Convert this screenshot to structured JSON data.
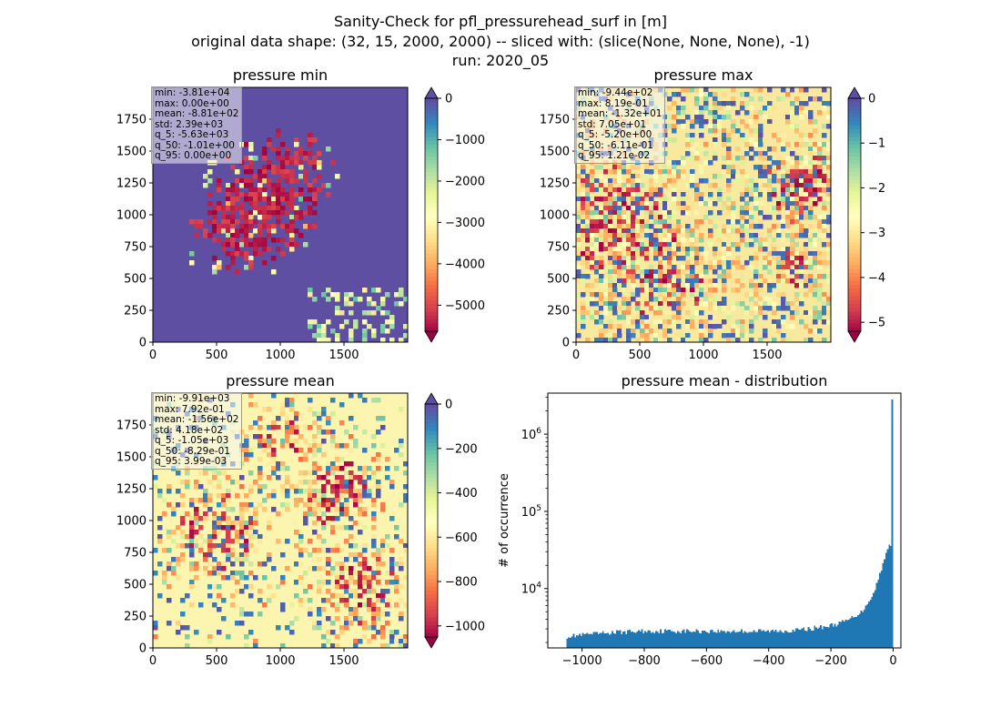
{
  "figure": {
    "title_lines": [
      "Sanity-Check for pfl_pressurehead_surf in [m]",
      "original data shape: (32, 15, 2000, 2000) -- sliced with: (slice(None, None, None), -1)",
      "run: 2020_05"
    ]
  },
  "chart_data": [
    {
      "type": "heatmap",
      "title": "pressure min",
      "xlim": [
        0,
        2000
      ],
      "ylim": [
        0,
        2000
      ],
      "xticks": [
        0,
        500,
        1000,
        1500
      ],
      "yticks": [
        0,
        250,
        500,
        750,
        1000,
        1250,
        1500,
        1750
      ],
      "colormap": "Spectral",
      "colorbar": {
        "range": [
          -5630,
          0
        ],
        "ticks": [
          0,
          -1000,
          -2000,
          -3000,
          -4000,
          -5000
        ],
        "extend": "both"
      },
      "background_color": "#5e4fa2",
      "stats": [
        "min: -3.81e+04",
        "max: 0.00e+00",
        "mean: -8.81e+02",
        "std: 2.39e+03",
        "q_5: -5.63e+03",
        "q_50: -1.01e+00",
        "q_95: 0.00e+00"
      ]
    },
    {
      "type": "heatmap",
      "title": "pressure max",
      "xlim": [
        0,
        2000
      ],
      "ylim": [
        0,
        2000
      ],
      "xticks": [
        0,
        500,
        1000,
        1500
      ],
      "yticks": [
        0,
        250,
        500,
        750,
        1000,
        1250,
        1500,
        1750
      ],
      "colormap": "Spectral",
      "colorbar": {
        "range": [
          -5.2,
          0
        ],
        "ticks": [
          0,
          -1,
          -2,
          -3,
          -4,
          -5
        ],
        "extend": "both"
      },
      "background_color": "#f8e99e",
      "stats": [
        "min: -9.44e+02",
        "max: 8.19e-01",
        "mean: -1.32e+01",
        "std: 7.05e+01",
        "q_5: -5.20e+00",
        "q_50: -6.11e-01",
        "q_95: 1.21e-02"
      ]
    },
    {
      "type": "heatmap",
      "title": "pressure mean",
      "xlim": [
        0,
        2000
      ],
      "ylim": [
        0,
        2000
      ],
      "xticks": [
        0,
        500,
        1000,
        1500
      ],
      "yticks": [
        0,
        250,
        500,
        750,
        1000,
        1250,
        1500,
        1750
      ],
      "colormap": "Spectral",
      "colorbar": {
        "range": [
          -1050,
          0
        ],
        "ticks": [
          0,
          -200,
          -400,
          -600,
          -800,
          -1000
        ],
        "extend": "both"
      },
      "background_color": "#fcf5b0",
      "stats": [
        "min: -9.91e+03",
        "max: 7.92e-01",
        "mean: -1.56e+02",
        "std: 4.18e+02",
        "q_5: -1.05e+03",
        "q_50: -8.29e-01",
        "q_95: 3.99e-03"
      ]
    },
    {
      "type": "bar",
      "title": "pressure mean - distribution",
      "ylabel": "# of occurrence",
      "xlabel": "",
      "yscale": "log",
      "xlim": [
        -1110,
        25
      ],
      "ylim": [
        1700,
        3400000
      ],
      "xticks": [
        -1000,
        -800,
        -600,
        -400,
        -200,
        0
      ],
      "ytick_labels": [
        "10^4",
        "10^5",
        "10^6"
      ],
      "ytick_values": [
        10000,
        100000,
        1000000
      ],
      "color": "#1f77b4",
      "bin_range": [
        -1050,
        0
      ],
      "bin_width": 5,
      "approx_counts": [
        {
          "x": -1050,
          "y": 2400
        },
        {
          "x": -900,
          "y": 2700
        },
        {
          "x": -800,
          "y": 2800
        },
        {
          "x": -600,
          "y": 2800
        },
        {
          "x": -400,
          "y": 2800
        },
        {
          "x": -300,
          "y": 2900
        },
        {
          "x": -200,
          "y": 3300
        },
        {
          "x": -150,
          "y": 3800
        },
        {
          "x": -100,
          "y": 5000
        },
        {
          "x": -60,
          "y": 9000
        },
        {
          "x": -40,
          "y": 17000
        },
        {
          "x": -20,
          "y": 30000
        },
        {
          "x": -10,
          "y": 38000
        },
        {
          "x": -5,
          "y": 35000
        },
        {
          "x": 0,
          "y": 2800000
        }
      ]
    }
  ]
}
